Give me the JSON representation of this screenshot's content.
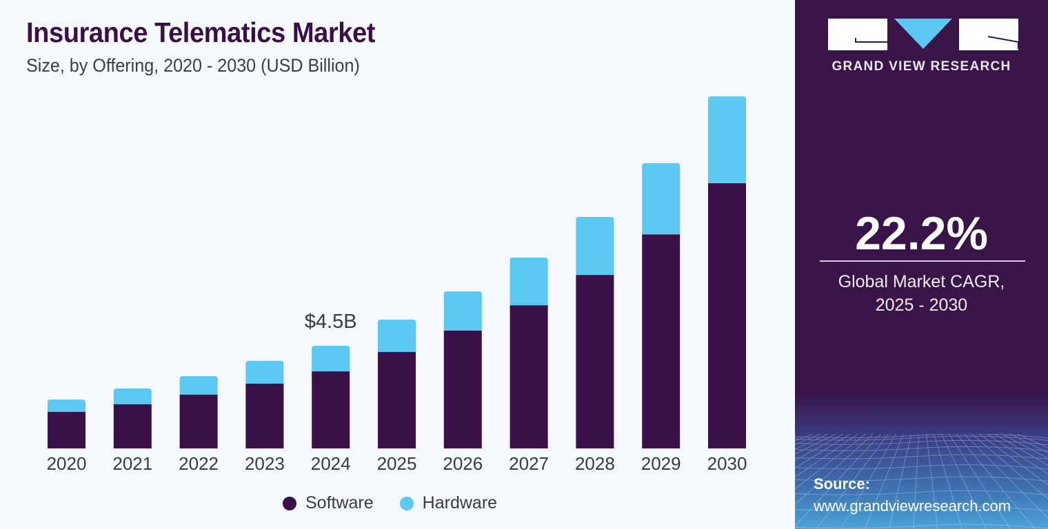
{
  "header": {
    "title": "Insurance Telematics Market",
    "subtitle": "Size, by Offering, 2020 - 2030 (USD Billion)"
  },
  "brand": {
    "name": "GRAND VIEW RESEARCH",
    "logo_icon": "gvr-logo-icon"
  },
  "highlight": {
    "cagr_value": "22.2%",
    "cagr_label_line1": "Global Market CAGR,",
    "cagr_label_line2": "2025 - 2030"
  },
  "source": {
    "heading": "Source:",
    "url": "www.grandviewresearch.com"
  },
  "colors": {
    "software": "#391047",
    "hardware": "#5bc8f2",
    "panel": "#391447"
  },
  "chart_data": {
    "type": "bar",
    "stacked": true,
    "title": "Insurance Telematics Market",
    "subtitle": "Size, by Offering, 2020 - 2030 (USD Billion)",
    "xlabel": "",
    "ylabel": "USD Billion",
    "categories": [
      "2020",
      "2021",
      "2022",
      "2023",
      "2024",
      "2025",
      "2026",
      "2027",
      "2028",
      "2029",
      "2030"
    ],
    "series": [
      {
        "name": "Software",
        "color": "#391047",
        "values": [
          1.6,
          1.94,
          2.36,
          2.84,
          3.38,
          4.23,
          5.17,
          6.28,
          7.61,
          9.39,
          11.63
        ]
      },
      {
        "name": "Hardware",
        "color": "#5bc8f2",
        "values": [
          0.54,
          0.69,
          0.81,
          1.0,
          1.12,
          1.42,
          1.72,
          2.09,
          2.54,
          3.12,
          3.81
        ]
      }
    ],
    "totals": [
      2.14,
      2.63,
      3.17,
      3.84,
      4.5,
      5.65,
      6.89,
      8.37,
      10.15,
      12.51,
      15.44
    ],
    "annotations": [
      {
        "category": "2024",
        "text": "$4.5B"
      }
    ],
    "ylim": [
      0,
      16
    ],
    "grid": false,
    "legend": {
      "position": "bottom",
      "entries": [
        "Software",
        "Hardware"
      ]
    }
  }
}
